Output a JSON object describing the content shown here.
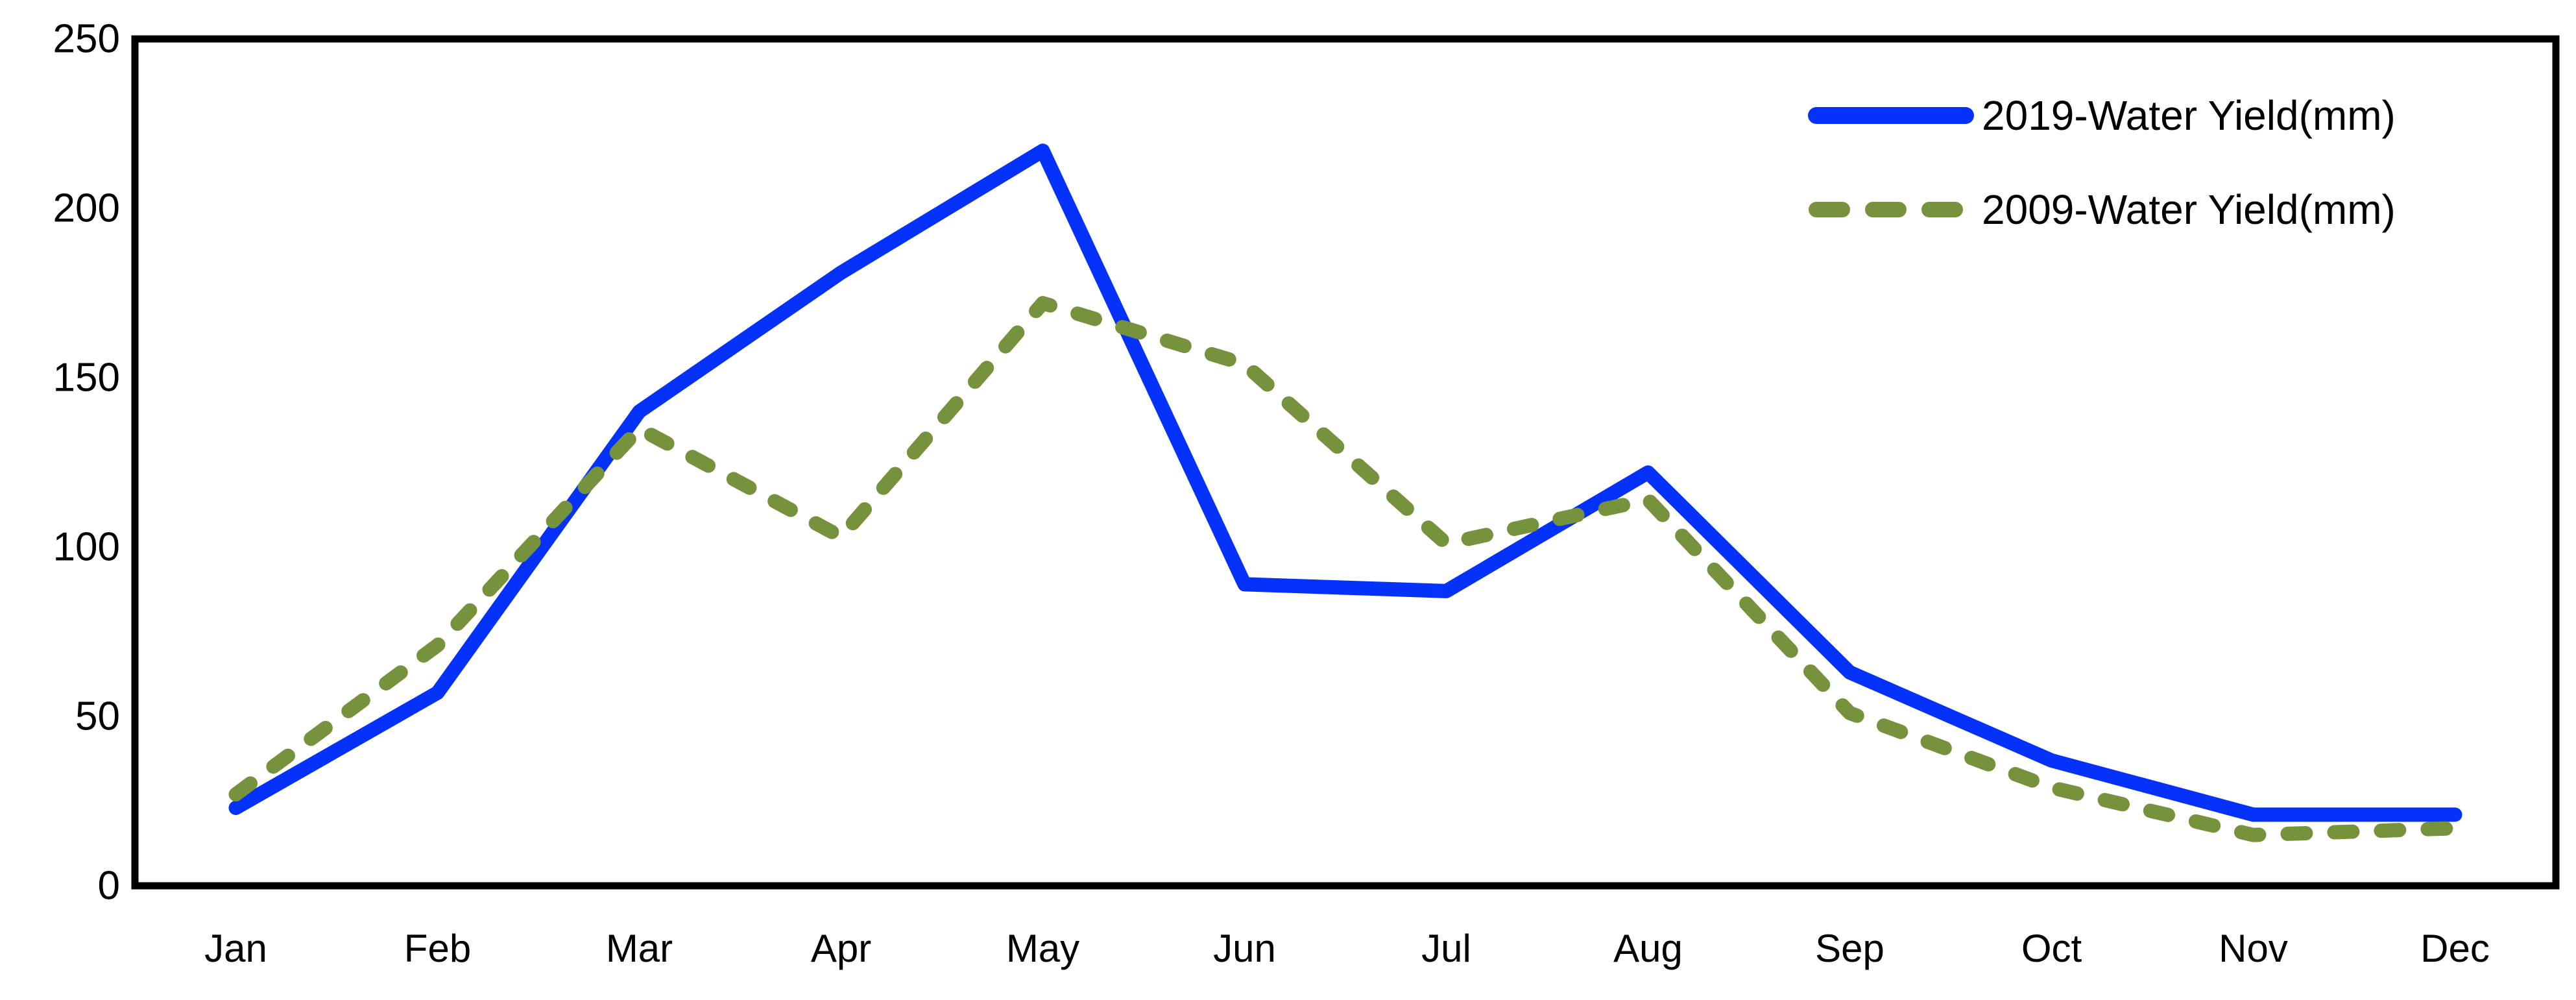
{
  "page": {
    "background": "#ffffff"
  },
  "chart_data": {
    "type": "line",
    "title": "",
    "xlabel": "",
    "ylabel": "",
    "categories": [
      "Jan",
      "Feb",
      "Mar",
      "Apr",
      "May",
      "Jun",
      "Jul",
      "Aug",
      "Sep",
      "Oct",
      "Nov",
      "Dec"
    ],
    "series": [
      {
        "name": "2019-Water Yield(mm)",
        "style": "solid",
        "color": "#0532fb",
        "values": [
          23,
          57,
          140,
          181,
          217,
          89,
          87,
          122,
          63,
          37,
          21,
          21
        ]
      },
      {
        "name": "2009-Water Yield(mm)",
        "style": "dashed",
        "color": "#76923c",
        "values": [
          27,
          71,
          135,
          103,
          172,
          154,
          101,
          114,
          51,
          29,
          15,
          17
        ]
      }
    ],
    "ylim": [
      0,
      250
    ],
    "yticks": [
      "0",
      "50",
      "100",
      "150",
      "200",
      "250"
    ],
    "grid": false,
    "legend_position": "top-right",
    "axis_color": "#000000",
    "tick_label_color": "#000000"
  }
}
